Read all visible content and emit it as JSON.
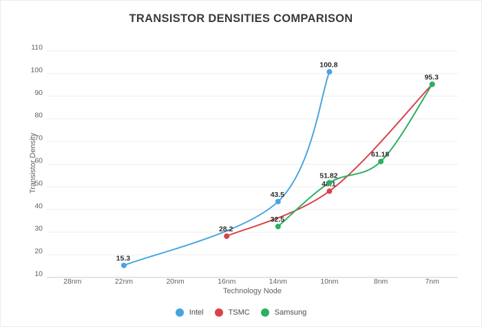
{
  "chart_data": {
    "type": "line",
    "title": "TRANSISTOR DENSITIES COMPARISON",
    "xlabel": "Technology Node",
    "ylabel": "Transistor Density",
    "categories": [
      "28nm",
      "22nm",
      "20nm",
      "16nm",
      "14nm",
      "10nm",
      "8nm",
      "7nm"
    ],
    "ylim": [
      10,
      110
    ],
    "ytick_interval": 10,
    "grid": "horizontal",
    "legend_position": "bottom",
    "line_style": "smooth",
    "background_color": "#ffffff",
    "gridline_color": "#ededed",
    "axis_line_color": "#c9c9c9",
    "series": [
      {
        "name": "Intel",
        "color": "#47a4e0",
        "points": [
          {
            "x": "22nm",
            "y": 15.3,
            "label": "15.3"
          },
          {
            "x": "14nm",
            "y": 43.5,
            "label": "43.5"
          },
          {
            "x": "10nm",
            "y": 100.8,
            "label": "100.8"
          }
        ]
      },
      {
        "name": "TSMC",
        "color": "#d8434b",
        "points": [
          {
            "x": "16nm",
            "y": 28.2,
            "label": "28.2"
          },
          {
            "x": "10nm",
            "y": 48.1,
            "label": "48.1"
          },
          {
            "x": "7nm",
            "y": 95.3,
            "label": ""
          }
        ]
      },
      {
        "name": "Samsung",
        "color": "#2ab062",
        "points": [
          {
            "x": "14nm",
            "y": 32.5,
            "label": "32.5"
          },
          {
            "x": "10nm",
            "y": 51.82,
            "label": "51.82"
          },
          {
            "x": "8nm",
            "y": 61.18,
            "label": "61.18"
          },
          {
            "x": "7nm",
            "y": 95.3,
            "label": "95.3"
          }
        ]
      }
    ]
  }
}
